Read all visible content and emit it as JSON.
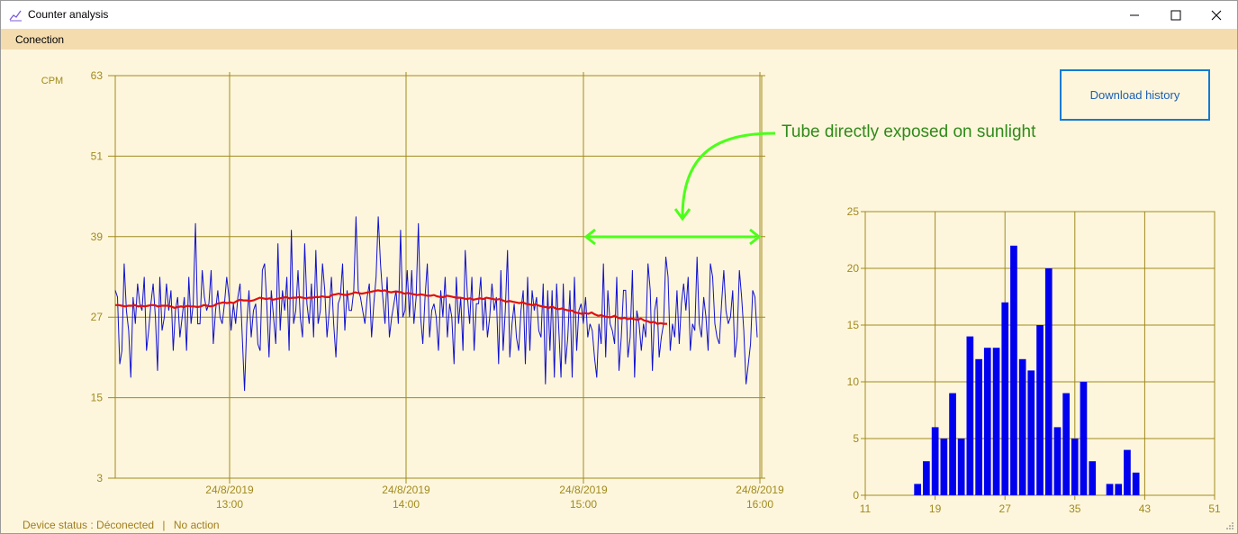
{
  "window": {
    "title": "Counter analysis"
  },
  "menu": {
    "items": [
      {
        "label": "Conection"
      }
    ]
  },
  "main_chart": {
    "ylabel": "CPM",
    "y_ticks": [
      "63",
      "51",
      "39",
      "27",
      "15",
      "3"
    ],
    "x_ticks": [
      {
        "date": "24/8/2019",
        "time": "13:00"
      },
      {
        "date": "24/8/2019",
        "time": "14:00"
      },
      {
        "date": "24/8/2019",
        "time": "15:00"
      },
      {
        "date": "24/8/2019",
        "time": "16:00"
      }
    ],
    "annotation": "Tube directly exposed on sunlight"
  },
  "download_button": {
    "label": "Download history"
  },
  "status": {
    "device": "Device status : Déconected",
    "separator": "|",
    "action": "No action"
  },
  "colors": {
    "background": "#fef6dc",
    "grid": "#a08a1e",
    "raw": "#1010d0",
    "average": "#e01010",
    "annotation": "#4cff1a",
    "histogram": "#0000ee"
  },
  "chart_data": [
    {
      "type": "line",
      "ylabel": "CPM",
      "ylim": [
        3,
        63
      ],
      "x_ticks": [
        "24/8/2019 13:00",
        "24/8/2019 14:00",
        "24/8/2019 15:00",
        "24/8/2019 16:00"
      ],
      "series": [
        {
          "values": [
            31,
            30,
            20,
            22,
            35,
            28,
            25,
            18,
            30,
            26,
            32,
            29,
            28,
            33,
            22,
            25,
            29,
            32,
            27,
            19,
            33,
            25,
            27,
            32,
            28,
            31,
            22,
            28,
            30,
            24,
            27,
            30,
            22,
            33,
            26,
            29,
            41,
            26,
            26,
            34,
            30,
            28,
            29,
            34,
            23,
            28,
            31,
            27,
            26,
            29,
            33,
            30,
            25,
            29,
            26,
            30,
            32,
            24,
            16,
            26,
            31,
            24,
            28,
            29,
            23,
            22,
            34,
            35,
            29,
            21,
            31,
            27,
            23,
            38,
            25,
            31,
            28,
            33,
            22,
            40,
            26,
            28,
            34,
            27,
            24,
            38,
            29,
            26,
            32,
            24,
            37,
            26,
            28,
            35,
            31,
            24,
            28,
            33,
            26,
            21,
            29,
            30,
            35,
            25,
            31,
            28,
            28,
            31,
            42,
            31,
            30,
            28,
            26,
            30,
            32,
            24,
            29,
            33,
            42,
            35,
            30,
            26,
            33,
            24,
            27,
            29,
            31,
            26,
            40,
            27,
            28,
            34,
            27,
            34,
            26,
            30,
            41,
            27,
            23,
            30,
            35,
            24,
            28,
            29,
            27,
            22,
            31,
            27,
            33,
            24,
            29,
            27,
            20,
            33,
            26,
            30,
            22,
            37,
            30,
            26,
            33,
            22,
            29,
            29,
            33,
            25,
            30,
            24,
            27,
            32,
            28,
            30,
            20,
            34,
            22,
            28,
            37,
            21,
            26,
            29,
            24,
            22,
            28,
            31,
            20,
            33,
            22,
            31,
            28,
            30,
            25,
            24,
            32,
            17,
            31,
            22,
            31,
            18,
            32,
            25,
            18,
            32,
            20,
            24,
            31,
            18,
            33,
            22,
            28,
            29,
            26,
            30,
            24,
            26,
            25,
            21,
            18,
            26,
            23,
            35,
            21,
            31,
            26,
            25,
            23,
            33,
            19,
            24,
            31,
            31,
            21,
            24,
            34,
            18,
            28,
            26,
            22,
            26,
            24,
            35,
            31,
            19,
            28,
            30,
            21,
            24,
            26,
            36,
            33,
            22,
            26,
            24,
            31,
            23,
            29,
            32,
            28,
            33,
            22,
            26,
            25,
            36,
            26,
            24,
            30,
            27,
            22,
            35,
            33,
            26,
            24,
            23,
            29,
            34,
            28,
            26,
            27,
            31,
            21,
            24,
            34,
            30,
            25,
            17,
            20,
            23,
            31,
            30,
            24
          ]
        },
        {
          "values": [
            28.8,
            28.8,
            28.7,
            28.6,
            28.7,
            28.7,
            28.8,
            28.6,
            28.7,
            28.6,
            28.7,
            28.8,
            28.8,
            28.6,
            28.7,
            28.7,
            28.7,
            28.6,
            28.4,
            28.5,
            28.6,
            28.5,
            28.7,
            28.6,
            28.6,
            28.5,
            28.6,
            28.8,
            28.7,
            28.6,
            28.7,
            29.0,
            29.1,
            29.2,
            29.1,
            29.2,
            29.1,
            29.4,
            29.6,
            29.5,
            29.5,
            29.4,
            29.5,
            29.7,
            29.9,
            29.8,
            29.7,
            29.8,
            29.6,
            29.7,
            29.8,
            29.9,
            30.0,
            29.8,
            29.9,
            29.9,
            30.0,
            29.9,
            29.8,
            29.9,
            29.9,
            30.0,
            30.0,
            30.1,
            30.0,
            30.0,
            30.3,
            30.4,
            30.5,
            30.4,
            30.3,
            30.4,
            30.5,
            30.7,
            30.6,
            30.5,
            30.6,
            30.7,
            30.8,
            30.9,
            31.0,
            30.9,
            31.0,
            30.8,
            30.7,
            30.8,
            30.8,
            30.7,
            30.5,
            30.6,
            30.5,
            30.4,
            30.3,
            30.4,
            30.3,
            30.2,
            30.2,
            30.3,
            30.1,
            30.0,
            30.0,
            30.2,
            30.1,
            30.0,
            29.9,
            29.9,
            29.8,
            29.7,
            29.8,
            29.6,
            29.7,
            29.8,
            29.7,
            29.9,
            29.8,
            29.7,
            29.6,
            29.7,
            29.5,
            29.3,
            29.4,
            29.3,
            29.2,
            29.1,
            29.2,
            29.0,
            28.9,
            28.8,
            28.9,
            28.7,
            28.6,
            28.5,
            28.4,
            28.6,
            28.3,
            28.2,
            28.3,
            28.1,
            28.0,
            28.0,
            27.7,
            27.6,
            27.5,
            27.6,
            27.5,
            27.7,
            27.4,
            27.2,
            27.3,
            27.1,
            27.0,
            27.0,
            27.2,
            26.9,
            26.8,
            26.9,
            26.7,
            26.8,
            26.7,
            26.6,
            26.8,
            26.5,
            26.4,
            26.2,
            26.3,
            26.0,
            26.1,
            26.0,
            26.0
          ]
        }
      ]
    },
    {
      "type": "bar",
      "xlim": [
        11,
        51
      ],
      "ylim": [
        0,
        25
      ],
      "x_ticks": [
        11,
        19,
        27,
        35,
        43,
        51
      ],
      "y_ticks": [
        0,
        5,
        10,
        15,
        20,
        25
      ],
      "x": [
        17,
        18,
        19,
        20,
        21,
        22,
        23,
        24,
        25,
        26,
        27,
        28,
        29,
        30,
        31,
        32,
        33,
        34,
        35,
        36,
        37,
        38,
        39,
        40,
        41,
        42
      ],
      "values": [
        1,
        3,
        6,
        5,
        9,
        5,
        14,
        12,
        13,
        13,
        17,
        22,
        12,
        11,
        15,
        20,
        6,
        9,
        5,
        10,
        3,
        0,
        1,
        1,
        4,
        2
      ]
    }
  ]
}
